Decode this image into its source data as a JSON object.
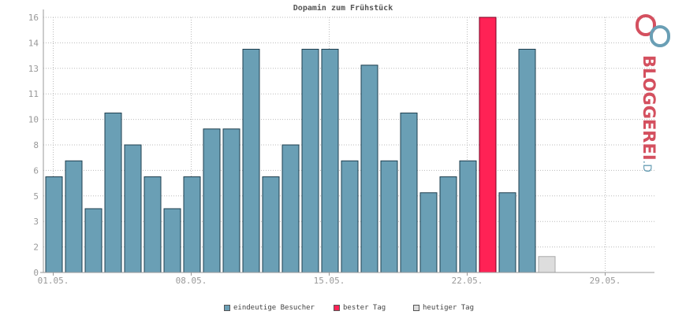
{
  "chart_data": {
    "type": "bar",
    "title": "Dopamin zum Frühstück",
    "xlabel": "",
    "ylabel": "",
    "ylim": [
      0,
      16
    ],
    "yticks": [
      "0",
      "2",
      "3",
      "5",
      "6",
      "8",
      "10",
      "11",
      "13",
      "14",
      "16"
    ],
    "ytick_values": [
      0,
      1.6,
      3.2,
      4.8,
      6.4,
      8.0,
      9.6,
      11.2,
      12.8,
      14.4,
      16.0
    ],
    "xticks": [
      {
        "label": "01.05.",
        "index": 0
      },
      {
        "label": "08.05.",
        "index": 7
      },
      {
        "label": "15.05.",
        "index": 14
      },
      {
        "label": "22.05.",
        "index": 21
      },
      {
        "label": "29.05.",
        "index": 28
      }
    ],
    "days": 31,
    "series": [
      {
        "name": "eindeutige Besucher",
        "color": "#6a9fb5",
        "values": [
          6,
          7,
          4,
          10,
          8,
          6,
          4,
          6,
          9,
          9,
          14,
          6,
          8,
          14,
          14,
          7,
          13,
          7,
          10,
          5,
          6,
          7,
          null,
          5,
          14,
          null,
          null,
          null,
          null,
          null,
          null
        ]
      },
      {
        "name": "bester Tag",
        "color": "#ff2255",
        "values": [
          null,
          null,
          null,
          null,
          null,
          null,
          null,
          null,
          null,
          null,
          null,
          null,
          null,
          null,
          null,
          null,
          null,
          null,
          null,
          null,
          null,
          null,
          16,
          null,
          null,
          null,
          null,
          null,
          null,
          null,
          null
        ]
      },
      {
        "name": "heutiger Tag",
        "color": "#dddddd",
        "values": [
          null,
          null,
          null,
          null,
          null,
          null,
          null,
          null,
          null,
          null,
          null,
          null,
          null,
          null,
          null,
          null,
          null,
          null,
          null,
          null,
          null,
          null,
          null,
          null,
          null,
          1,
          null,
          null,
          null,
          null,
          null
        ]
      }
    ],
    "grid": true,
    "legend_position": "bottom"
  },
  "legend": [
    {
      "label": "eindeutige Besucher",
      "color": "#6a9fb5"
    },
    {
      "label": "bester Tag",
      "color": "#ff2255"
    },
    {
      "label": "heutiger Tag",
      "color": "#dddddd"
    }
  ],
  "watermark": {
    "text": "BLOGGEREI",
    "suffix": ".DE",
    "color": "#d4505f",
    "suffix_color": "#6a9fb5"
  }
}
